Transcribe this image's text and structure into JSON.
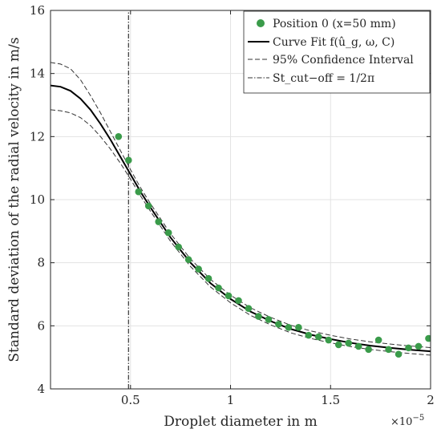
{
  "chart_data": {
    "type": "scatter",
    "xlabel": "Droplet diameter in m",
    "ylabel": "Standard deviation of the radial velocity in m/s",
    "x_multiplier": "×10",
    "x_multiplier_exp": "−5",
    "xlim": [
      0.1,
      2.0
    ],
    "ylim": [
      4,
      16
    ],
    "xticks": [
      0.5,
      1,
      1.5,
      2
    ],
    "xtick_labels": [
      "0.5",
      "1",
      "1.5",
      "2"
    ],
    "yticks": [
      4,
      6,
      8,
      10,
      12,
      14,
      16
    ],
    "ytick_labels": [
      "4",
      "6",
      "8",
      "10",
      "12",
      "14",
      "16"
    ],
    "grid": true,
    "legend_position": "top-right",
    "colors": {
      "points": "#3a9b4a",
      "fit": "#000000",
      "ci": "#333333",
      "cutoff": "#333333",
      "grid": "#e3e3e3",
      "axes": "#262626"
    },
    "legend": {
      "position_label": "Position 0 (x=50 mm)",
      "fit_label": "Curve Fit f(û_g, ω, C)",
      "ci_label": "95% Confidence Interval",
      "cutoff_label": "St_cut−off = 1/2π"
    },
    "series": [
      {
        "name": "Position 0 (x=50 mm)",
        "style": "markers",
        "x": [
          0.44,
          0.49,
          0.54,
          0.59,
          0.64,
          0.69,
          0.74,
          0.79,
          0.84,
          0.89,
          0.94,
          0.99,
          1.04,
          1.09,
          1.14,
          1.19,
          1.24,
          1.29,
          1.34,
          1.39,
          1.44,
          1.49,
          1.54,
          1.59,
          1.64,
          1.69,
          1.74,
          1.79,
          1.84,
          1.89,
          1.94,
          1.99
        ],
        "y": [
          12.0,
          11.25,
          10.25,
          9.8,
          9.3,
          8.95,
          8.5,
          8.1,
          7.8,
          7.5,
          7.2,
          6.95,
          6.8,
          6.55,
          6.3,
          6.2,
          6.05,
          5.95,
          5.95,
          5.7,
          5.65,
          5.55,
          5.4,
          5.45,
          5.35,
          5.25,
          5.55,
          5.25,
          5.1,
          5.3,
          5.35,
          5.6
        ]
      },
      {
        "name": "Curve Fit f(û_g, ω, C)",
        "style": "solid",
        "x": [
          0.1,
          0.15,
          0.2,
          0.25,
          0.3,
          0.35,
          0.4,
          0.45,
          0.5,
          0.55,
          0.6,
          0.7,
          0.8,
          0.9,
          1.0,
          1.1,
          1.2,
          1.3,
          1.4,
          1.5,
          1.6,
          1.7,
          1.8,
          1.9,
          2.0
        ],
        "y": [
          13.62,
          13.58,
          13.45,
          13.2,
          12.85,
          12.4,
          11.9,
          11.35,
          10.8,
          10.25,
          9.75,
          8.8,
          8.0,
          7.35,
          6.85,
          6.45,
          6.15,
          5.9,
          5.72,
          5.58,
          5.46,
          5.37,
          5.3,
          5.24,
          5.19
        ]
      },
      {
        "name": "95% Confidence Interval (upper)",
        "style": "dashed",
        "x": [
          0.1,
          0.15,
          0.2,
          0.25,
          0.3,
          0.35,
          0.4,
          0.45,
          0.5,
          0.55,
          0.6,
          0.7,
          0.8,
          0.9,
          1.0,
          1.1,
          1.2,
          1.3,
          1.4,
          1.5,
          1.6,
          1.7,
          1.8,
          1.9,
          2.0
        ],
        "y": [
          14.35,
          14.3,
          14.15,
          13.8,
          13.3,
          12.75,
          12.15,
          11.55,
          10.95,
          10.38,
          9.87,
          8.92,
          8.12,
          7.47,
          6.97,
          6.57,
          6.27,
          6.02,
          5.84,
          5.7,
          5.58,
          5.49,
          5.42,
          5.36,
          5.31
        ]
      },
      {
        "name": "95% Confidence Interval (lower)",
        "style": "dashed",
        "x": [
          0.1,
          0.15,
          0.2,
          0.25,
          0.3,
          0.35,
          0.4,
          0.45,
          0.5,
          0.55,
          0.6,
          0.7,
          0.8,
          0.9,
          1.0,
          1.1,
          1.2,
          1.3,
          1.4,
          1.5,
          1.6,
          1.7,
          1.8,
          1.9,
          2.0
        ],
        "y": [
          12.85,
          12.82,
          12.75,
          12.6,
          12.35,
          12.0,
          11.6,
          11.15,
          10.65,
          10.12,
          9.63,
          8.68,
          7.88,
          7.23,
          6.73,
          6.33,
          6.03,
          5.78,
          5.6,
          5.46,
          5.34,
          5.25,
          5.18,
          5.12,
          5.07
        ]
      },
      {
        "name": "St_cut−off = 1/2π",
        "style": "dash-dot",
        "x": [
          0.49,
          0.49
        ],
        "y": [
          4,
          16
        ]
      }
    ]
  }
}
